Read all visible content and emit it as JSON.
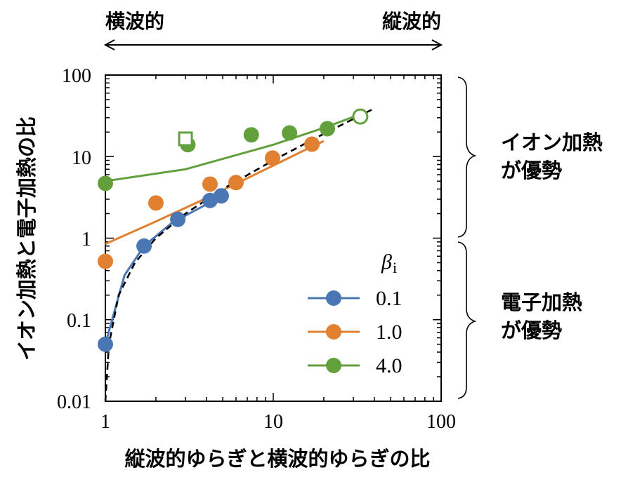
{
  "annotations": {
    "top_left": "横波的",
    "top_right": "縦波的",
    "bracket_upper_line1": "イオン加熱",
    "bracket_upper_line2": "が優勢",
    "bracket_lower_line1": "電子加熱",
    "bracket_lower_line2": "が優勢"
  },
  "chart_data": {
    "type": "scatter",
    "xlabel": "縦波的ゆらぎと横波的ゆらぎの比",
    "ylabel": "イオン加熱と電子加熱の比",
    "xscale": "log",
    "yscale": "log",
    "xlim": [
      1,
      100
    ],
    "ylim": [
      0.01,
      100
    ],
    "xticks": [
      "1",
      "10",
      "100"
    ],
    "yticks": [
      "0.01",
      "0.1",
      "1",
      "10",
      "100"
    ],
    "legend": {
      "title": "βi",
      "title_symbol": "β",
      "title_subscript": "i",
      "placement": "bottom-right"
    },
    "series": [
      {
        "name": "0.1",
        "color": "#4a77b4",
        "points": [
          [
            1.0,
            0.05
          ],
          [
            1.7,
            0.8
          ],
          [
            2.7,
            1.7
          ],
          [
            4.2,
            2.9
          ],
          [
            4.9,
            3.3
          ]
        ],
        "fit": [
          [
            1.0,
            0.05
          ],
          [
            1.3,
            0.35
          ],
          [
            1.7,
            0.8
          ],
          [
            2.5,
            1.55
          ],
          [
            4.0,
            2.6
          ],
          [
            5.2,
            3.5
          ]
        ]
      },
      {
        "name": "1.0",
        "color": "#e08030",
        "points": [
          [
            1.0,
            0.52
          ],
          [
            2.0,
            2.7
          ],
          [
            4.2,
            4.6
          ],
          [
            6.0,
            4.8
          ],
          [
            9.9,
            9.6
          ],
          [
            17.0,
            14.2
          ]
        ],
        "fit": [
          [
            1.0,
            0.85
          ],
          [
            2.0,
            1.6
          ],
          [
            4.0,
            3.1
          ],
          [
            8.0,
            6.2
          ],
          [
            16.0,
            12.5
          ],
          [
            20.0,
            15.5
          ]
        ]
      },
      {
        "name": "4.0",
        "color": "#62a03c",
        "points": [
          [
            1.0,
            4.7
          ],
          [
            3.1,
            14.0
          ],
          [
            7.4,
            18.5
          ],
          [
            12.5,
            19.5
          ],
          [
            21.0,
            22.0
          ]
        ],
        "fit": [
          [
            1.0,
            5.0
          ],
          [
            3.0,
            7.0
          ],
          [
            10.0,
            14.0
          ],
          [
            20.0,
            22.5
          ],
          [
            33.0,
            33.0
          ]
        ],
        "open_circle": [
          33.0,
          31.0
        ],
        "open_square": [
          3.0,
          16.5
        ]
      }
    ],
    "reference_line": {
      "style": "dashed",
      "color": "#000000",
      "points": [
        [
          1.0,
          0.01
        ],
        [
          1.05,
          0.05
        ],
        [
          1.2,
          0.2
        ],
        [
          1.5,
          0.5
        ],
        [
          2.0,
          1.0
        ],
        [
          3.0,
          2.0
        ],
        [
          5.0,
          4.0
        ],
        [
          10.0,
          9.0
        ],
        [
          20.0,
          19.0
        ],
        [
          40.0,
          39.0
        ]
      ]
    }
  }
}
